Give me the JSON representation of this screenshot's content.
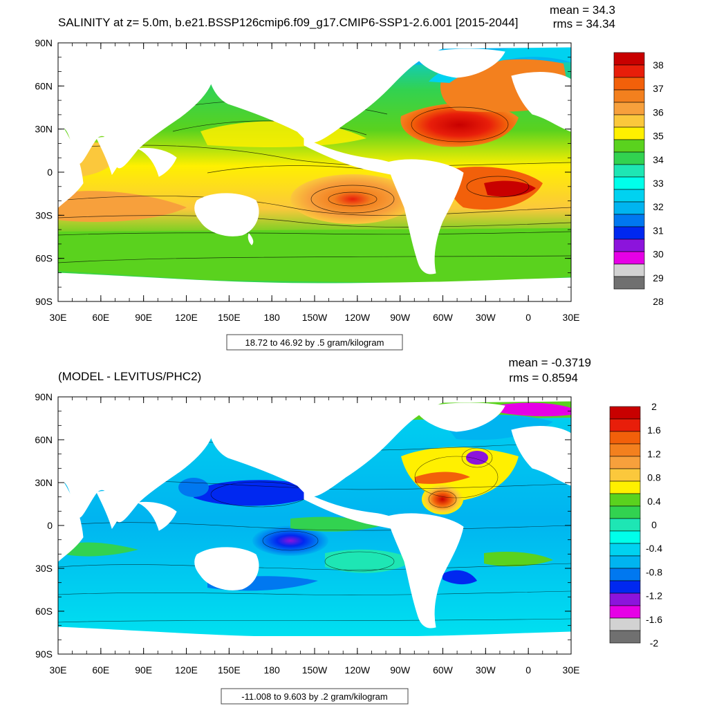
{
  "panels": [
    {
      "title": "SALINITY at z=   5.0m, b.e21.BSSP126cmip6.f09_g17.CMIP6-SSP1-2.6.001 [2015-2044]",
      "stats": [
        "mean = 34.3",
        "rms = 34.34"
      ],
      "info": "18.72 to 46.92 by .5 gram/kilogram",
      "y_ticks": [
        "90N",
        "60N",
        "30N",
        "0",
        "30S",
        "60S",
        "90S"
      ],
      "x_ticks": [
        "30E",
        "60E",
        "90E",
        "120E",
        "150E",
        "180",
        "150W",
        "120W",
        "90W",
        "60W",
        "30W",
        "0",
        "30E"
      ],
      "colorbar": {
        "labels": [
          "38",
          "37",
          "36",
          "35",
          "34",
          "33",
          "32",
          "31",
          "30",
          "29",
          "28"
        ],
        "colors": [
          "#c80000",
          "#e81e0a",
          "#f2600a",
          "#f3801e",
          "#f7a03c",
          "#fbc83c",
          "#fff000",
          "#5ad21e",
          "#32d250",
          "#1ee6b4",
          "#00ffea",
          "#00d2f0",
          "#00b4f0",
          "#0078f0",
          "#0028f0",
          "#8c14dc",
          "#e600e6",
          "#d2d2d2",
          "#707070"
        ]
      }
    },
    {
      "title": "(MODEL - LEVITUS/PHC2)",
      "stats": [
        "mean = -0.3719",
        "rms = 0.8594"
      ],
      "info": "-11.008 to 9.603 by .2 gram/kilogram",
      "y_ticks": [
        "90N",
        "60N",
        "30N",
        "0",
        "30S",
        "60S",
        "90S"
      ],
      "x_ticks": [
        "30E",
        "60E",
        "90E",
        "120E",
        "150E",
        "180",
        "150W",
        "120W",
        "90W",
        "60W",
        "30W",
        "0",
        "30E"
      ],
      "colorbar": {
        "labels": [
          "2",
          "1.6",
          "1.2",
          "0.8",
          "0.4",
          "0",
          "-0.4",
          "-0.8",
          "-1.2",
          "-1.6",
          "-2"
        ],
        "colors": [
          "#c80000",
          "#e81e0a",
          "#f2600a",
          "#f3801e",
          "#f7a03c",
          "#fbc83c",
          "#fff000",
          "#5ad21e",
          "#32d250",
          "#1ee6b4",
          "#00ffea",
          "#00d2f0",
          "#00b4f0",
          "#0078f0",
          "#0028f0",
          "#8c14dc",
          "#e600e6",
          "#d2d2d2",
          "#707070"
        ]
      }
    }
  ]
}
